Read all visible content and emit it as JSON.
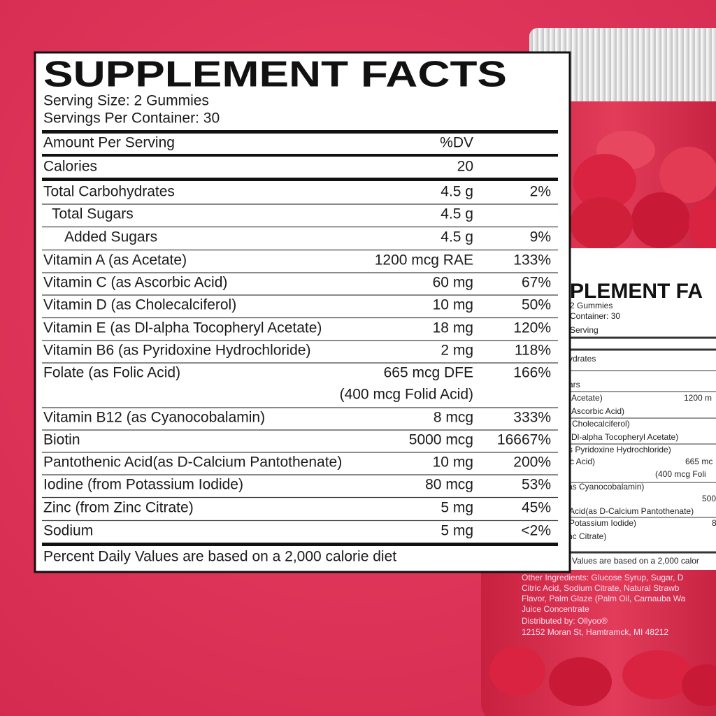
{
  "panel": {
    "title": "SUPPLEMENT FACTS",
    "serving_size": "Serving Size: 2 Gummies",
    "servings_per_container": "Servings Per Container: 30",
    "amount_header": "Amount Per Serving",
    "dv_header": "%DV",
    "calories_label": "Calories",
    "calories_value": "20",
    "rows": [
      {
        "name": "Total Carbohydrates",
        "amount": "4.5 g",
        "dv": "2%"
      },
      {
        "name": "Total Sugars",
        "amount": "4.5 g",
        "dv": null
      },
      {
        "name": "Added Sugars",
        "amount": "4.5 g",
        "dv": "9%"
      },
      {
        "name": "Vitamin A (as Acetate)",
        "amount": "1200 mcg RAE",
        "dv": "133%"
      },
      {
        "name": "Vitamin C (as Ascorbic Acid)",
        "amount": "60 mg",
        "dv": "67%"
      },
      {
        "name": "Vitamin D (as Cholecalciferol)",
        "amount": "10 mg",
        "dv": "50%"
      },
      {
        "name": "Vitamin E (as Dl-alpha Tocopheryl Acetate)",
        "amount": "18 mg",
        "dv": "120%"
      },
      {
        "name": "Vitamin B6 (as Pyridoxine Hydrochloride)",
        "amount": "2 mg",
        "dv": "118%"
      },
      {
        "name": "Folate (as Folic Acid)",
        "amount": "665 mcg DFE",
        "amount_note": "(400 mcg Folid Acid)",
        "dv": "166%"
      },
      {
        "name": "Vitamin B12 (as Cyanocobalamin)",
        "amount": "8 mcg",
        "dv": "333%"
      },
      {
        "name": "Biotin",
        "amount": "5000 mcg",
        "dv": "16667%"
      },
      {
        "name": "Pantothenic Acid(as D-Calcium Pantothenate)",
        "amount": "10 mg",
        "dv": "200%"
      },
      {
        "name": "Iodine (from Potassium Iodide)",
        "amount": "80 mcg",
        "dv": "53%"
      },
      {
        "name": "Zinc (from Zinc Citrate)",
        "amount": "5 mg",
        "dv": "45%"
      },
      {
        "name": "Sodium",
        "amount": "5 mg",
        "dv": "<2%"
      }
    ],
    "footnote": "Percent Daily Values are based on a 2,000 calorie diet"
  },
  "jar_label": {
    "lines": [
      "PLEMENT FA",
      "2 Gummies",
      "Container: 30",
      "Serving",
      "ydrates",
      "ars",
      "Acetate)",
      "1200 m",
      "Ascorbic Acid)",
      "Cholecalciferol)",
      "Dl-alpha Tocopheryl Acetate)",
      "s Pyridoxine Hydrochloride)",
      "c Acid)",
      "665 mc",
      "(400 mcg Foli",
      "as Cyanocobalamin)",
      "500",
      "Acid(as D-Calcium Pantothenate)",
      "Potassium Iodide)",
      "8",
      "nc Citrate)",
      "Values are based on a 2,000 calor"
    ],
    "ingredients": [
      "Other Ingredients: Glucose Syrup, Sugar, D",
      "Citric Acid, Sodium Citrate, Natural Strawb",
      "Flavor, Palm Glaze (Palm Oil, Carnauba Wa",
      "Juice Concentrate"
    ],
    "distributor": [
      "Distributed by: Ollyoo®",
      "12152 Moran St, Hamtramck, MI 48212"
    ]
  }
}
